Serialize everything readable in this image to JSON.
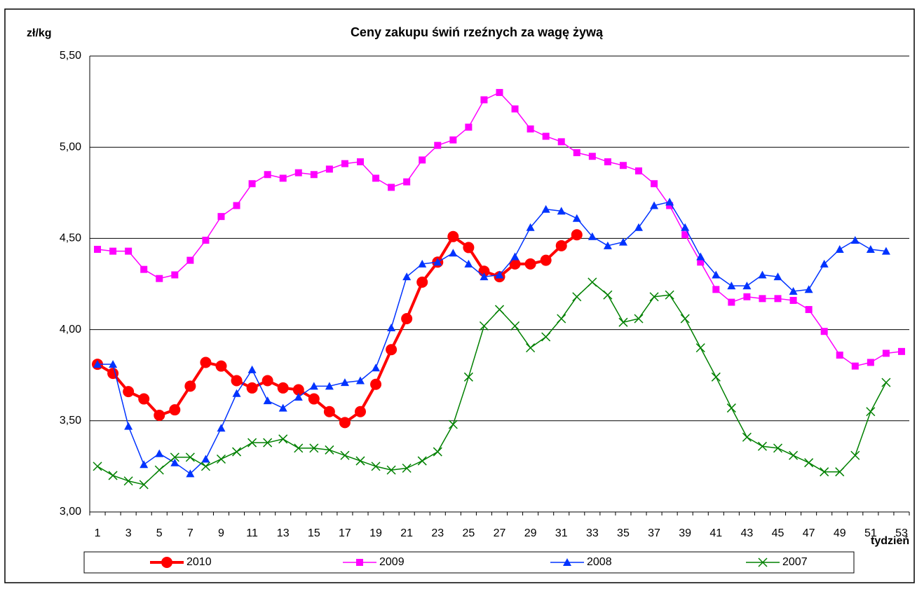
{
  "chart_data": {
    "type": "line",
    "title": "Ceny zakupu świń rzeźnych za wagę żywą",
    "y_label": "zł/kg",
    "x_label": "tydzień",
    "categories": [
      1,
      null,
      3,
      null,
      5,
      null,
      7,
      null,
      9,
      null,
      11,
      null,
      13,
      null,
      15,
      null,
      17,
      null,
      19,
      null,
      21,
      null,
      23,
      null,
      25,
      null,
      27,
      null,
      29,
      null,
      31,
      null,
      33,
      null,
      35,
      null,
      37,
      null,
      39,
      null,
      41,
      null,
      43,
      null,
      45,
      null,
      47,
      null,
      49,
      null,
      51,
      null,
      53
    ],
    "ylim": [
      3.0,
      5.5
    ],
    "yticks": [
      {
        "value": 3.0,
        "label": "3,00"
      },
      {
        "value": 3.5,
        "label": "3,50"
      },
      {
        "value": 4.0,
        "label": "4,00"
      },
      {
        "value": 4.5,
        "label": "4,50"
      },
      {
        "value": 5.0,
        "label": "5,00"
      },
      {
        "value": 5.5,
        "label": "5,50"
      }
    ],
    "grid": true,
    "legend": "bottom",
    "series": [
      {
        "name": "2010",
        "color": "#ff0000",
        "marker": "circle",
        "width": 4,
        "values": [
          3.81,
          3.76,
          3.66,
          3.62,
          3.53,
          3.56,
          3.69,
          3.82,
          3.8,
          3.72,
          3.68,
          3.72,
          3.68,
          3.67,
          3.62,
          3.55,
          3.49,
          3.55,
          3.7,
          3.89,
          4.06,
          4.26,
          4.37,
          4.51,
          4.45,
          4.32,
          4.29,
          4.36,
          4.36,
          4.38,
          4.46,
          4.52,
          null,
          null,
          null,
          null,
          null,
          null,
          null,
          null,
          null,
          null,
          null,
          null,
          null,
          null,
          null,
          null,
          null,
          null,
          null,
          null,
          null
        ]
      },
      {
        "name": "2009",
        "color": "#ff00ff",
        "marker": "square",
        "width": 1.5,
        "values": [
          4.44,
          4.43,
          4.43,
          4.33,
          4.28,
          4.3,
          4.38,
          4.49,
          4.62,
          4.68,
          4.8,
          4.85,
          4.83,
          4.86,
          4.85,
          4.88,
          4.91,
          4.92,
          4.83,
          4.78,
          4.81,
          4.93,
          5.01,
          5.04,
          5.11,
          5.26,
          5.3,
          5.21,
          5.1,
          5.06,
          5.03,
          4.97,
          4.95,
          4.92,
          4.9,
          4.87,
          4.8,
          4.68,
          4.52,
          4.37,
          4.22,
          4.15,
          4.18,
          4.17,
          4.17,
          4.16,
          4.11,
          3.99,
          3.86,
          3.8,
          3.82,
          3.87,
          3.88
        ]
      },
      {
        "name": "2008",
        "color": "#0033ff",
        "marker": "triangle",
        "width": 1.5,
        "values": [
          3.81,
          3.81,
          3.47,
          3.26,
          3.32,
          3.27,
          3.21,
          3.29,
          3.46,
          3.65,
          3.78,
          3.61,
          3.57,
          3.63,
          3.69,
          3.69,
          3.71,
          3.72,
          3.79,
          4.01,
          4.29,
          4.36,
          4.37,
          4.42,
          4.36,
          4.29,
          4.3,
          4.4,
          4.56,
          4.66,
          4.65,
          4.61,
          4.51,
          4.46,
          4.48,
          4.56,
          4.68,
          4.7,
          4.56,
          4.4,
          4.3,
          4.24,
          4.24,
          4.3,
          4.29,
          4.21,
          4.22,
          4.36,
          4.44,
          4.49,
          4.44,
          4.43,
          null
        ]
      },
      {
        "name": "2007",
        "color": "#008000",
        "marker": "x",
        "width": 1.5,
        "values": [
          3.25,
          3.2,
          3.17,
          3.15,
          3.23,
          3.3,
          3.3,
          3.25,
          3.29,
          3.33,
          3.38,
          3.38,
          3.4,
          3.35,
          3.35,
          3.34,
          3.31,
          3.28,
          3.25,
          3.23,
          3.24,
          3.28,
          3.33,
          3.48,
          3.74,
          4.02,
          4.11,
          4.02,
          3.9,
          3.96,
          4.06,
          4.18,
          4.26,
          4.19,
          4.04,
          4.06,
          4.18,
          4.19,
          4.06,
          3.9,
          3.74,
          3.57,
          3.41,
          3.36,
          3.35,
          3.31,
          3.27,
          3.22,
          3.22,
          3.31,
          3.55,
          3.71,
          null
        ]
      }
    ]
  }
}
